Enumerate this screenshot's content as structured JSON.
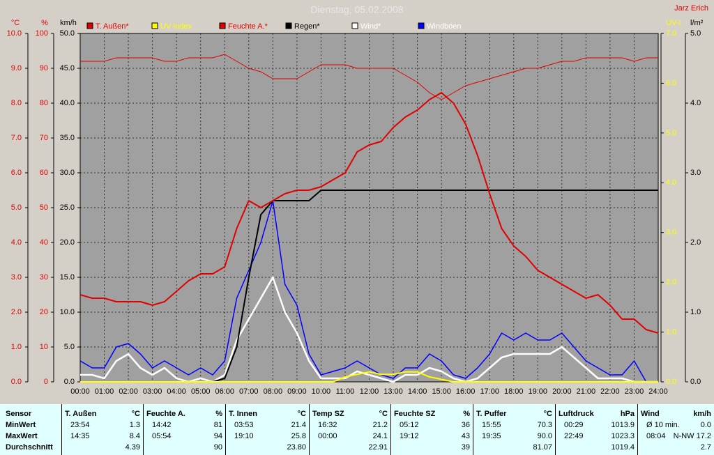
{
  "chart_data": {
    "type": "line",
    "title": "Dienstag, 05.02.2008",
    "author": "Jarz Erich",
    "x": [
      "00:00",
      "00:30",
      "01:00",
      "01:30",
      "02:00",
      "02:30",
      "03:00",
      "03:30",
      "04:00",
      "04:30",
      "05:00",
      "05:30",
      "06:00",
      "06:30",
      "07:00",
      "07:30",
      "08:00",
      "08:30",
      "09:00",
      "09:30",
      "10:00",
      "10:30",
      "11:00",
      "11:30",
      "12:00",
      "12:30",
      "13:00",
      "13:30",
      "14:00",
      "14:30",
      "15:00",
      "15:30",
      "16:00",
      "16:30",
      "17:00",
      "17:30",
      "18:00",
      "18:30",
      "19:00",
      "19:30",
      "20:00",
      "20:30",
      "21:00",
      "21:30",
      "22:00",
      "22:30",
      "23:00",
      "23:30",
      "24:00"
    ],
    "xticks": [
      "00:00",
      "01:00",
      "02:00",
      "03:00",
      "04:00",
      "05:00",
      "06:00",
      "07:00",
      "08:00",
      "09:00",
      "10:00",
      "11:00",
      "12:00",
      "13:00",
      "14:00",
      "15:00",
      "16:00",
      "17:00",
      "18:00",
      "19:00",
      "20:00",
      "21:00",
      "22:00",
      "23:00",
      "24:00"
    ],
    "grid": true,
    "axes": [
      {
        "label": "°C",
        "color": "#e00000",
        "lim": [
          0,
          10
        ],
        "ticks": [
          {
            "value": 0,
            "label": "0.0"
          },
          {
            "value": 1,
            "label": "1.0"
          },
          {
            "value": 2,
            "label": "2.0"
          },
          {
            "value": 3,
            "label": "3.0"
          },
          {
            "value": 4,
            "label": "4.0"
          },
          {
            "value": 5,
            "label": "5.0"
          },
          {
            "value": 6,
            "label": "6.0"
          },
          {
            "value": 7,
            "label": "7.0"
          },
          {
            "value": 8,
            "label": "8.0"
          },
          {
            "value": 9,
            "label": "9.0"
          },
          {
            "value": 10,
            "label": "10.0"
          }
        ]
      },
      {
        "label": "%",
        "color": "#e00000",
        "lim": [
          0,
          100
        ],
        "ticks": [
          0,
          10,
          20,
          30,
          40,
          50,
          60,
          70,
          80,
          90,
          100
        ]
      },
      {
        "label": "km/h",
        "color": "#000000",
        "lim": [
          0,
          50
        ],
        "ticks": [
          {
            "value": 0,
            "label": "0.0"
          },
          {
            "value": 5,
            "label": "5.0"
          },
          {
            "value": 10,
            "label": "10.0"
          },
          {
            "value": 15,
            "label": "15.0"
          },
          {
            "value": 20,
            "label": "20.0"
          },
          {
            "value": 25,
            "label": "25.0"
          },
          {
            "value": 30,
            "label": "30.0"
          },
          {
            "value": 35,
            "label": "35.0"
          },
          {
            "value": 40,
            "label": "40.0"
          },
          {
            "value": 45,
            "label": "45.0"
          },
          {
            "value": 50,
            "label": "50.0"
          }
        ]
      },
      {
        "label": "UV-I",
        "color": "#ffff00",
        "lim": [
          0,
          7
        ],
        "ticks": [
          {
            "value": 0,
            "label": "0.0"
          },
          {
            "value": 1,
            "label": "1.0"
          },
          {
            "value": 2,
            "label": "2.0"
          },
          {
            "value": 3,
            "label": "3.0"
          },
          {
            "value": 4,
            "label": "4.0"
          },
          {
            "value": 5,
            "label": "5.0"
          },
          {
            "value": 6,
            "label": "6.0"
          },
          {
            "value": 7,
            "label": "7.0"
          }
        ]
      },
      {
        "label": "l/m²",
        "color": "#000000",
        "lim": [
          0,
          5
        ],
        "ticks": [
          {
            "value": 0,
            "label": "0.0"
          },
          {
            "value": 1,
            "label": "1.0"
          },
          {
            "value": 2,
            "label": "2.0"
          },
          {
            "value": 3,
            "label": "3.0"
          },
          {
            "value": 4,
            "label": "4.0"
          },
          {
            "value": 5,
            "label": "5.0"
          }
        ]
      }
    ],
    "series": [
      {
        "name": "T. Außen*",
        "color": "#e00000",
        "label_color": "#e00000",
        "axis": 0,
        "width": 2,
        "values": [
          2.5,
          2.4,
          2.4,
          2.3,
          2.3,
          2.3,
          2.2,
          2.3,
          2.6,
          2.9,
          3.1,
          3.1,
          3.3,
          4.4,
          5.2,
          5.0,
          5.2,
          5.4,
          5.5,
          5.5,
          5.6,
          5.8,
          6.0,
          6.6,
          6.8,
          6.9,
          7.3,
          7.6,
          7.8,
          8.1,
          8.3,
          8.0,
          7.4,
          6.5,
          5.4,
          4.4,
          3.9,
          3.6,
          3.2,
          3.0,
          2.8,
          2.6,
          2.4,
          2.5,
          2.2,
          1.8,
          1.8,
          1.5,
          1.4
        ]
      },
      {
        "name": "UV Index",
        "color": "#ffff00",
        "label_color": "#ffff00",
        "axis": 3,
        "width": 2,
        "values": [
          0,
          0,
          0,
          0,
          0,
          0,
          0,
          0,
          0,
          0,
          0,
          0,
          0,
          0,
          0,
          0,
          0,
          0,
          0,
          0,
          0,
          0,
          0.1,
          0.15,
          0.2,
          0.15,
          0.15,
          0.2,
          0.2,
          0.1,
          0.05,
          0,
          0,
          0,
          0,
          0,
          0,
          0,
          0,
          0,
          0,
          0,
          0,
          0,
          0,
          0,
          0,
          0,
          0
        ]
      },
      {
        "name": "Feuchte A.*",
        "color": "#e00000",
        "label_color": "#e00000",
        "axis": 1,
        "width": 1,
        "values": [
          92,
          92,
          92,
          93,
          93,
          93,
          93,
          92,
          92,
          93,
          93,
          93,
          94,
          92,
          90,
          89,
          87,
          87,
          87,
          89,
          91,
          91,
          91,
          90,
          90,
          90,
          90,
          88,
          86,
          83,
          81,
          83,
          85,
          86,
          87,
          88,
          89,
          90,
          90,
          91,
          92,
          92,
          93,
          93,
          93,
          93,
          92,
          93,
          93
        ]
      },
      {
        "name": "Regen*",
        "color": "#000000",
        "label_color": "#000000",
        "axis": 4,
        "width": 2,
        "values": [
          0,
          0,
          0,
          0,
          0,
          0,
          0,
          0,
          0,
          0,
          0,
          0,
          0.05,
          0.5,
          1.5,
          2.4,
          2.6,
          2.6,
          2.6,
          2.6,
          2.75,
          2.75,
          2.75,
          2.75,
          2.75,
          2.75,
          2.75,
          2.75,
          2.75,
          2.75,
          2.75,
          2.75,
          2.75,
          2.75,
          2.75,
          2.75,
          2.75,
          2.75,
          2.75,
          2.75,
          2.75,
          2.75,
          2.75,
          2.75,
          2.75,
          2.75,
          2.75,
          2.75,
          2.75
        ]
      },
      {
        "name": "Wind*",
        "color": "#ffffff",
        "label_color": "#ffffff",
        "axis": 2,
        "width": 2.5,
        "values": [
          1,
          1,
          0.5,
          3,
          4,
          2,
          1,
          2,
          0.5,
          0,
          0.5,
          0,
          1,
          6,
          9,
          12,
          15,
          10,
          7,
          3,
          0.5,
          0.5,
          0.5,
          1.5,
          1,
          0.5,
          0,
          1,
          1,
          2,
          1.5,
          0.5,
          0,
          0.5,
          2,
          3.5,
          4,
          4,
          4,
          4,
          5,
          3.5,
          2,
          0.5,
          0.5,
          0.5,
          0,
          0,
          0
        ]
      },
      {
        "name": "Windböen",
        "color": "#0000ff",
        "label_color": "#ffffff",
        "axis": 2,
        "width": 1.5,
        "values": [
          3,
          2,
          2,
          5,
          5.5,
          4,
          2,
          3,
          2,
          1,
          2,
          1,
          3,
          12,
          16,
          20,
          26,
          14,
          11,
          4,
          1,
          1.5,
          2,
          3,
          2,
          1,
          0.5,
          2,
          2,
          4,
          3,
          1,
          0.5,
          2,
          4,
          7,
          6,
          7,
          6,
          6,
          7,
          5,
          3,
          2,
          1,
          1,
          3,
          0,
          0
        ]
      }
    ]
  },
  "table": {
    "row_labels": [
      "Sensor",
      "MinWert",
      "MaxWert",
      "Durchschnitt"
    ],
    "groups": [
      {
        "name": "T. Außen",
        "unit": "°C",
        "rows": [
          [
            "23:54",
            "1.3"
          ],
          [
            "14:35",
            "8.4"
          ],
          [
            null,
            "4.39"
          ]
        ]
      },
      {
        "name": "Feuchte A.",
        "unit": "%",
        "rows": [
          [
            "14:42",
            "81"
          ],
          [
            "05:54",
            "94"
          ],
          [
            null,
            "90"
          ]
        ]
      },
      {
        "name": "T. Innen",
        "unit": "°C",
        "rows": [
          [
            "03:53",
            "21.4"
          ],
          [
            "19:10",
            "25.8"
          ],
          [
            null,
            "23.80"
          ]
        ]
      },
      {
        "name": "Temp SZ",
        "unit": "°C",
        "rows": [
          [
            "16:32",
            "21.2"
          ],
          [
            "00:00",
            "24.1"
          ],
          [
            null,
            "22.91"
          ]
        ]
      },
      {
        "name": "Feuchte SZ",
        "unit": "%",
        "rows": [
          [
            "05:12",
            "36"
          ],
          [
            "19:12",
            "43"
          ],
          [
            null,
            "39"
          ]
        ]
      },
      {
        "name": "T. Puffer",
        "unit": "°C",
        "rows": [
          [
            "15:55",
            "70.3"
          ],
          [
            "19:35",
            "90.0"
          ],
          [
            null,
            "81.07"
          ]
        ]
      },
      {
        "name": "Luftdruck",
        "unit": "hPa",
        "rows": [
          [
            "00:29",
            "1013.9"
          ],
          [
            "22:49",
            "1023.3"
          ],
          [
            null,
            "1019.4"
          ]
        ]
      },
      {
        "name": "Wind",
        "unit": "km/h",
        "rows": [
          [
            "Ø 10 min.",
            "0.0"
          ],
          [
            "08:04",
            "N-NW 17.2"
          ],
          [
            null,
            "2.7"
          ]
        ]
      }
    ]
  }
}
